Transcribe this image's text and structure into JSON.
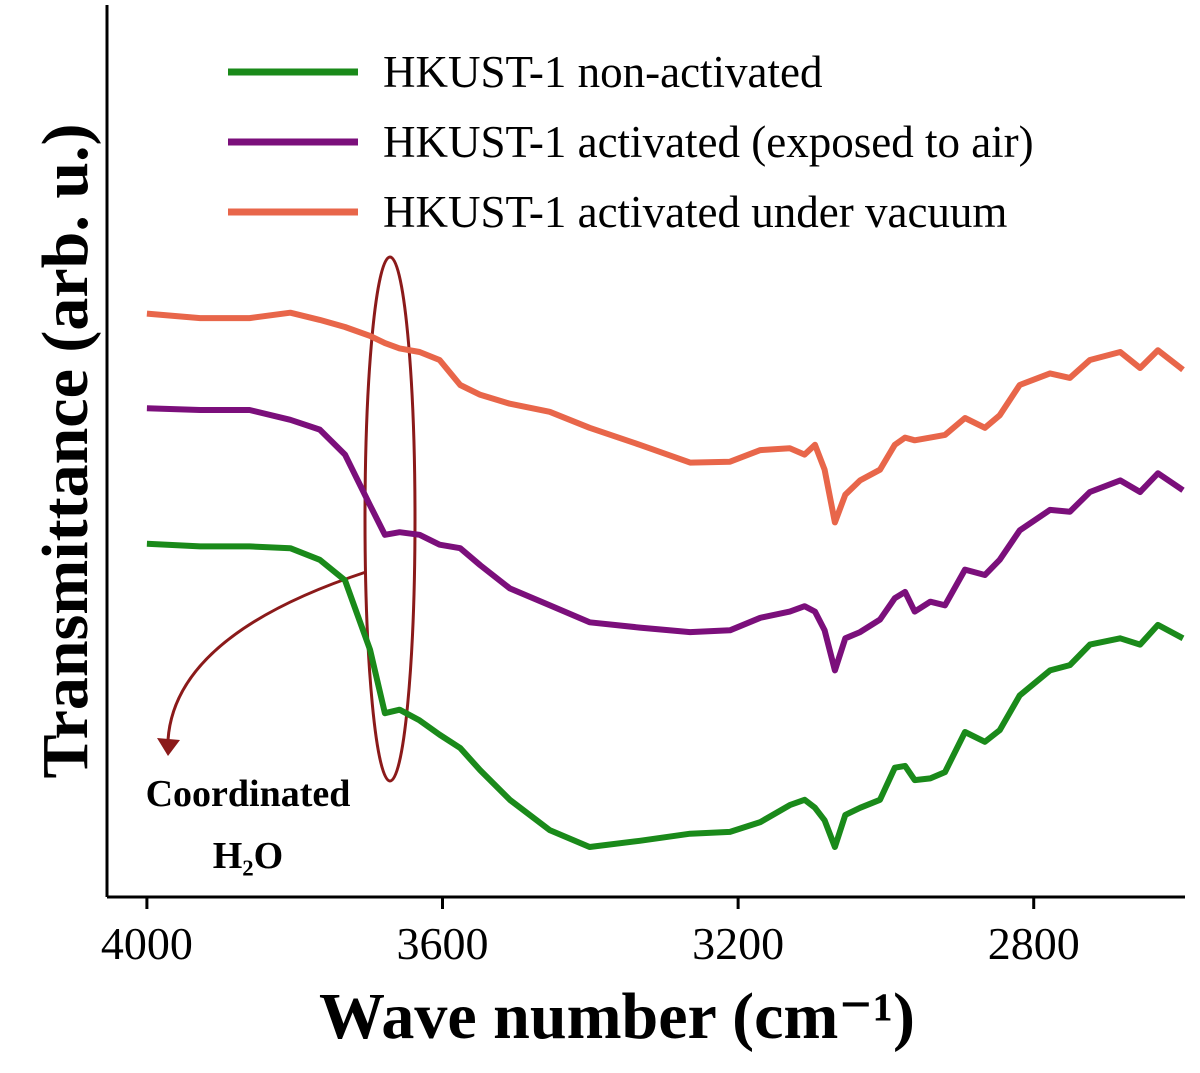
{
  "chart_data": {
    "type": "line",
    "x_label": "Wave number (cm⁻¹)",
    "y_label": "Transmittance (arb. u.)",
    "annotation": [
      "Coordinated",
      "H₂O"
    ],
    "xlim": [
      4054,
      2598
    ],
    "xticks": [
      4000,
      3600,
      3200,
      2800
    ],
    "ylim": [
      0,
      100
    ],
    "x": [
      4000,
      3928,
      3861,
      3806,
      3766,
      3732,
      3698,
      3678,
      3658,
      3631,
      3604,
      3576,
      3549,
      3509,
      3455,
      3401,
      3333,
      3265,
      3211,
      3170,
      3130,
      3110,
      3096,
      3083,
      3069,
      3055,
      3035,
      3008,
      2988,
      2974,
      2961,
      2940,
      2920,
      2893,
      2866,
      2846,
      2819,
      2778,
      2751,
      2724,
      2683,
      2656,
      2632,
      2598
    ],
    "series": [
      {
        "name": "HKUST-1 non-activated",
        "color": "#1a8a1a",
        "values": [
          39.6,
          39.3,
          39.3,
          39.1,
          37.8,
          35.5,
          27.7,
          20.6,
          21.0,
          19.8,
          18.2,
          16.7,
          14.2,
          10.9,
          7.5,
          5.6,
          6.3,
          7.1,
          7.3,
          8.4,
          10.3,
          10.9,
          10.0,
          8.6,
          5.6,
          9.2,
          10.0,
          10.9,
          14.5,
          14.7,
          13.1,
          13.3,
          14.0,
          18.5,
          17.4,
          18.7,
          22.6,
          25.4,
          26.0,
          28.3,
          29.0,
          28.3,
          30.5,
          29.0
        ]
      },
      {
        "name": "HKUST-1 activated (exposed to air)",
        "color": "#7b0f7b",
        "values": [
          54.8,
          54.6,
          54.6,
          53.5,
          52.4,
          49.6,
          43.9,
          40.6,
          40.9,
          40.6,
          39.5,
          39.1,
          37.2,
          34.6,
          32.7,
          30.8,
          30.2,
          29.7,
          29.9,
          31.3,
          32.0,
          32.6,
          32.0,
          29.9,
          25.4,
          29.0,
          29.7,
          31.1,
          33.5,
          34.2,
          32.0,
          33.1,
          32.7,
          36.7,
          36.1,
          37.8,
          41.1,
          43.4,
          43.2,
          45.4,
          46.7,
          45.4,
          47.5,
          45.6
        ]
      },
      {
        "name": "HKUST-1 activated under vacuum",
        "color": "#e8664a",
        "values": [
          65.4,
          64.9,
          64.9,
          65.5,
          64.7,
          63.9,
          62.9,
          62.1,
          61.5,
          61.1,
          60.2,
          57.4,
          56.3,
          55.3,
          54.4,
          52.6,
          50.7,
          48.7,
          48.8,
          50.1,
          50.3,
          49.6,
          50.7,
          47.9,
          42.0,
          45.1,
          46.7,
          47.9,
          50.7,
          51.5,
          51.2,
          51.5,
          51.8,
          53.7,
          52.6,
          54.0,
          57.4,
          58.7,
          58.2,
          60.2,
          61.1,
          59.3,
          61.3,
          59.1
        ]
      }
    ]
  }
}
